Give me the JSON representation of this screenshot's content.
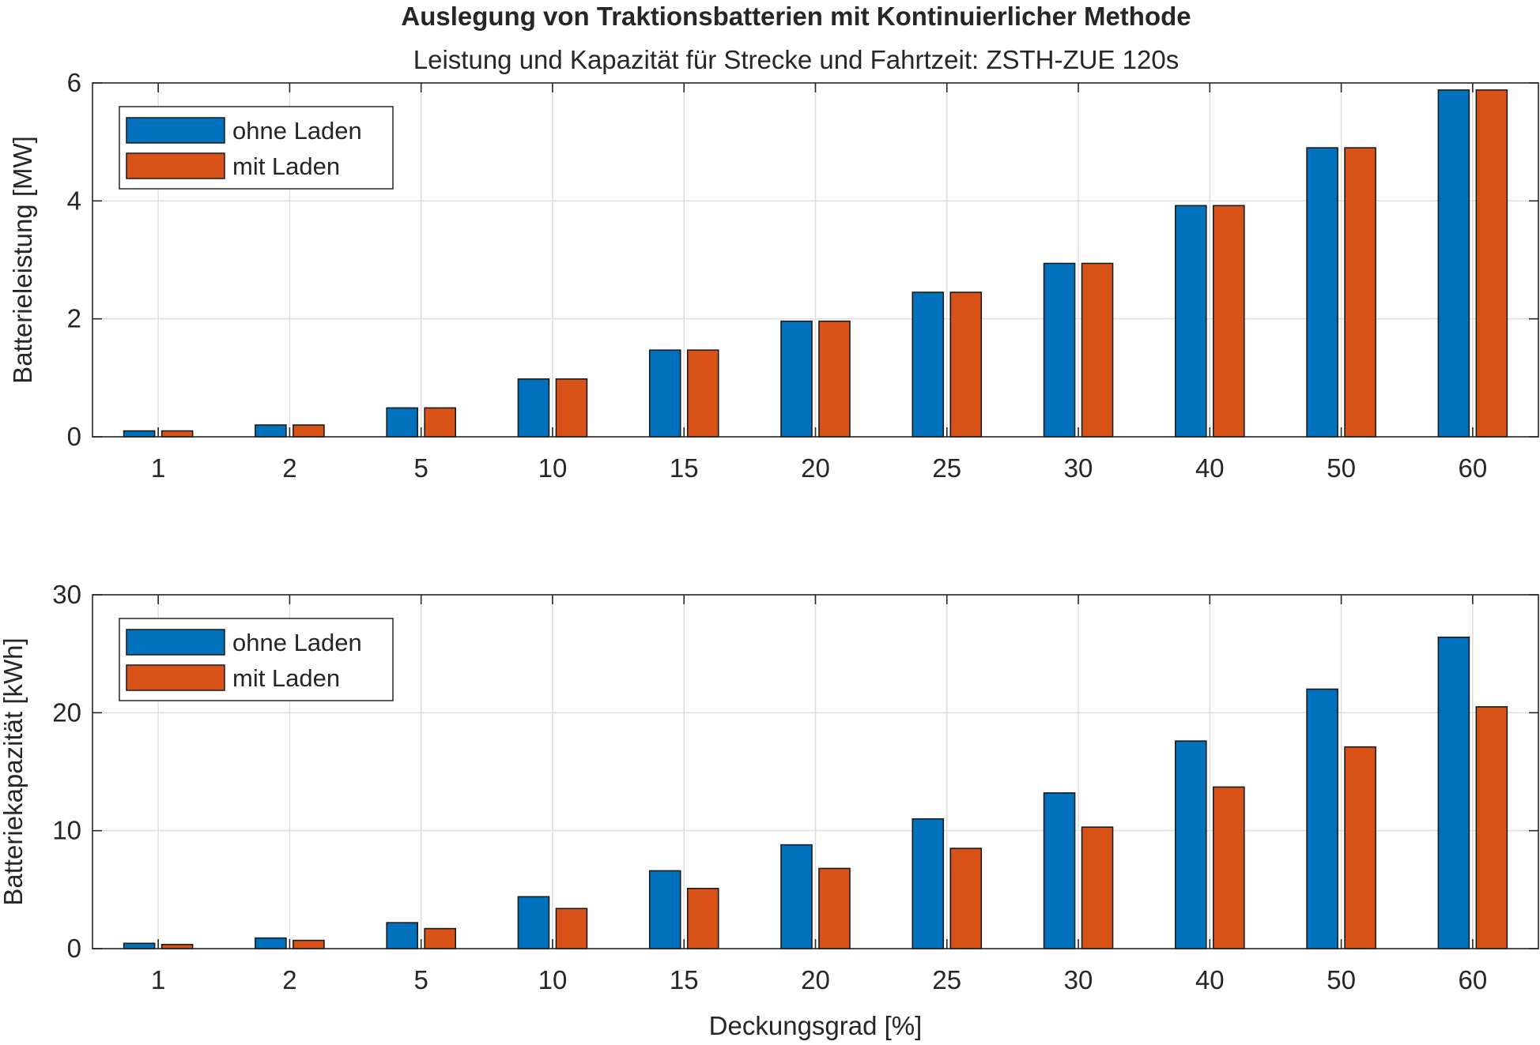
{
  "chart_data": [
    {
      "type": "bar",
      "title": "Auslegung von Traktionsbatterien mit Kontinuierlicher Methode",
      "subtitle": "Leistung und Kapazität für Strecke und Fahrtzeit: ZSTH-ZUE 120s",
      "xlabel": "",
      "ylabel": "Batterieleistung [MW]",
      "categories": [
        "1",
        "2",
        "5",
        "10",
        "15",
        "20",
        "25",
        "30",
        "40",
        "50",
        "60"
      ],
      "series": [
        {
          "name": "ohne Laden",
          "color": "#0072BD",
          "values": [
            0.1,
            0.2,
            0.49,
            0.98,
            1.47,
            1.96,
            2.45,
            2.94,
            3.92,
            4.9,
            5.88
          ]
        },
        {
          "name": "mit Laden",
          "color": "#D95319",
          "values": [
            0.1,
            0.2,
            0.49,
            0.98,
            1.47,
            1.96,
            2.45,
            2.94,
            3.92,
            4.9,
            5.88
          ]
        }
      ],
      "ylim": [
        0,
        6
      ],
      "yticks": [
        "0",
        "2",
        "4",
        "6"
      ],
      "grid": true,
      "legend_position": "top-left"
    },
    {
      "type": "bar",
      "xlabel": "Deckungsgrad [%]",
      "ylabel": "Batteriekapazität [kWh]",
      "categories": [
        "1",
        "2",
        "5",
        "10",
        "15",
        "20",
        "25",
        "30",
        "40",
        "50",
        "60"
      ],
      "series": [
        {
          "name": "ohne Laden",
          "color": "#0072BD",
          "values": [
            0.45,
            0.9,
            2.2,
            4.4,
            6.6,
            8.8,
            11.0,
            13.2,
            17.6,
            22.0,
            26.4
          ]
        },
        {
          "name": "mit Laden",
          "color": "#D95319",
          "values": [
            0.35,
            0.7,
            1.7,
            3.4,
            5.1,
            6.8,
            8.5,
            10.3,
            13.7,
            17.1,
            20.5
          ]
        }
      ],
      "ylim": [
        0,
        30
      ],
      "yticks": [
        "0",
        "10",
        "20",
        "30"
      ],
      "grid": true,
      "legend_position": "top-left"
    }
  ]
}
